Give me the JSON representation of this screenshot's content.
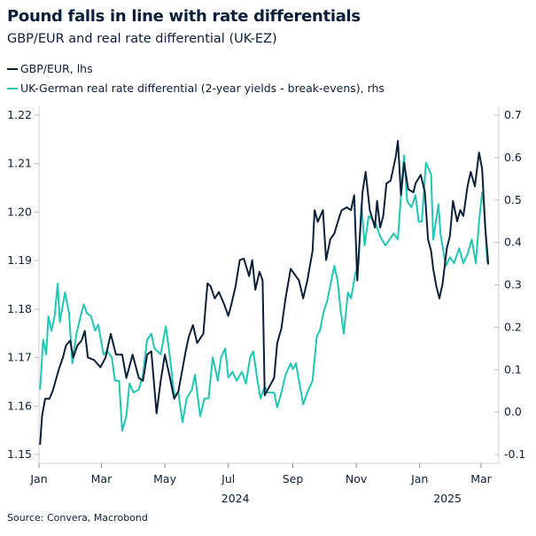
{
  "chart_data": {
    "type": "line",
    "title": "Pound falls in line with rate differentials",
    "subtitle": "GBP/EUR and real rate differential (UK-EZ)",
    "source": "Source: Convera, Macrobond",
    "x_ticks": [
      {
        "date": "2024-01-01",
        "label": "Jan"
      },
      {
        "date": "2024-03-01",
        "label": "Mar"
      },
      {
        "date": "2024-05-01",
        "label": "May"
      },
      {
        "date": "2024-07-01",
        "label": "Jul"
      },
      {
        "date": "2024-09-01",
        "label": "Sep"
      },
      {
        "date": "2024-11-01",
        "label": "Nov"
      },
      {
        "date": "2025-01-01",
        "label": "Jan"
      },
      {
        "date": "2025-03-01",
        "label": "Mar"
      }
    ],
    "year_labels": [
      {
        "date": "2024-07-01",
        "label": "2024"
      },
      {
        "date": "2025-02-01",
        "label": "2025"
      }
    ],
    "xlim": [
      "2024-01-01",
      "2025-03-15"
    ],
    "y_left": {
      "lim": [
        1.15,
        1.22
      ],
      "ticks": [
        "1.15",
        "1.16",
        "1.17",
        "1.18",
        "1.19",
        "1.20",
        "1.21",
        "1.22"
      ]
    },
    "y_right": {
      "lim": [
        -0.1,
        0.7
      ],
      "ticks": [
        "-0.1",
        "0.0",
        "0.1",
        "0.2",
        "0.3",
        "0.4",
        "0.5",
        "0.6",
        "0.7"
      ]
    },
    "grid": false,
    "legend_placement": "top-left",
    "series": [
      {
        "name": "GBP/EUR, lhs",
        "axis": "left",
        "color": "#0b1f3a",
        "points": [
          [
            "2024-01-02",
            1.152
          ],
          [
            "2024-01-04",
            1.158
          ],
          [
            "2024-01-07",
            1.1615
          ],
          [
            "2024-01-11",
            1.1615
          ],
          [
            "2024-01-14",
            1.163
          ],
          [
            "2024-01-20",
            1.1675
          ],
          [
            "2024-01-24",
            1.17
          ],
          [
            "2024-01-27",
            1.1725
          ],
          [
            "2024-01-31",
            1.1735
          ],
          [
            "2024-02-03",
            1.17
          ],
          [
            "2024-02-07",
            1.1725
          ],
          [
            "2024-02-11",
            1.1735
          ],
          [
            "2024-02-14",
            1.1755
          ],
          [
            "2024-02-17",
            1.17
          ],
          [
            "2024-02-23",
            1.1695
          ],
          [
            "2024-02-29",
            1.168
          ],
          [
            "2024-03-05",
            1.17
          ],
          [
            "2024-03-10",
            1.1749
          ],
          [
            "2024-03-15",
            1.1706
          ],
          [
            "2024-03-21",
            1.1706
          ],
          [
            "2024-03-25",
            1.1658
          ],
          [
            "2024-03-31",
            1.1706
          ],
          [
            "2024-04-06",
            1.1658
          ],
          [
            "2024-04-10",
            1.1652
          ],
          [
            "2024-04-14",
            1.1706
          ],
          [
            "2024-04-18",
            1.1713
          ],
          [
            "2024-04-23",
            1.1585
          ],
          [
            "2024-04-27",
            1.1652
          ],
          [
            "2024-05-01",
            1.1706
          ],
          [
            "2024-05-06",
            1.1658
          ],
          [
            "2024-05-10",
            1.1615
          ],
          [
            "2024-05-14",
            1.163
          ],
          [
            "2024-05-21",
            1.1713
          ],
          [
            "2024-05-24",
            1.1743
          ],
          [
            "2024-05-28",
            1.1767
          ],
          [
            "2024-06-01",
            1.173
          ],
          [
            "2024-06-07",
            1.1749
          ],
          [
            "2024-06-11",
            1.1853
          ],
          [
            "2024-06-14",
            1.1847
          ],
          [
            "2024-06-18",
            1.1822
          ],
          [
            "2024-06-22",
            1.1835
          ],
          [
            "2024-06-27",
            1.181
          ],
          [
            "2024-07-01",
            1.1786
          ],
          [
            "2024-07-04",
            1.181
          ],
          [
            "2024-07-08",
            1.1847
          ],
          [
            "2024-07-12",
            1.1901
          ],
          [
            "2024-07-16",
            1.1904
          ],
          [
            "2024-07-21",
            1.1868
          ],
          [
            "2024-07-24",
            1.1901
          ],
          [
            "2024-07-27",
            1.184
          ],
          [
            "2024-07-31",
            1.1877
          ],
          [
            "2024-08-03",
            1.1859
          ],
          [
            "2024-08-05",
            1.1622
          ],
          [
            "2024-08-08",
            1.1634
          ],
          [
            "2024-08-14",
            1.1658
          ],
          [
            "2024-08-17",
            1.173
          ],
          [
            "2024-08-21",
            1.176
          ],
          [
            "2024-08-25",
            1.1822
          ],
          [
            "2024-08-30",
            1.1883
          ],
          [
            "2024-09-03",
            1.1871
          ],
          [
            "2024-09-07",
            1.1859
          ],
          [
            "2024-09-11",
            1.1822
          ],
          [
            "2024-09-15",
            1.1859
          ],
          [
            "2024-09-20",
            1.192
          ],
          [
            "2024-09-22",
            1.2004
          ],
          [
            "2024-09-25",
            1.198
          ],
          [
            "2024-09-30",
            1.2004
          ],
          [
            "2024-10-03",
            1.1901
          ],
          [
            "2024-10-07",
            1.1944
          ],
          [
            "2024-10-11",
            1.1956
          ],
          [
            "2024-10-16",
            1.1992
          ],
          [
            "2024-10-18",
            1.2004
          ],
          [
            "2024-10-23",
            1.201
          ],
          [
            "2024-10-27",
            1.2004
          ],
          [
            "2024-10-30",
            1.2035
          ],
          [
            "2024-11-02",
            1.1859
          ],
          [
            "2024-11-04",
            1.1932
          ],
          [
            "2024-11-07",
            1.2041
          ],
          [
            "2024-11-10",
            1.2083
          ],
          [
            "2024-11-14",
            1.2004
          ],
          [
            "2024-11-19",
            1.1968
          ],
          [
            "2024-11-21",
            1.2023
          ],
          [
            "2024-11-24",
            1.1968
          ],
          [
            "2024-11-27",
            1.1992
          ],
          [
            "2024-11-30",
            1.2059
          ],
          [
            "2024-12-04",
            1.2065
          ],
          [
            "2024-12-09",
            1.2114
          ],
          [
            "2024-12-11",
            1.2147
          ],
          [
            "2024-12-14",
            1.2035
          ],
          [
            "2024-12-17",
            1.2102
          ],
          [
            "2024-12-21",
            1.2047
          ],
          [
            "2024-12-26",
            1.2041
          ],
          [
            "2024-12-28",
            1.2059
          ],
          [
            "2025-01-02",
            1.2077
          ],
          [
            "2025-01-06",
            1.2041
          ],
          [
            "2025-01-09",
            1.1944
          ],
          [
            "2025-01-12",
            1.192
          ],
          [
            "2025-01-14",
            1.1883
          ],
          [
            "2025-01-17",
            1.1847
          ],
          [
            "2025-01-20",
            1.1822
          ],
          [
            "2025-01-23",
            1.1853
          ],
          [
            "2025-01-27",
            1.1925
          ],
          [
            "2025-01-30",
            1.195
          ],
          [
            "2025-02-02",
            1.2023
          ],
          [
            "2025-02-06",
            1.1981
          ],
          [
            "2025-02-09",
            1.2004
          ],
          [
            "2025-02-12",
            1.1992
          ],
          [
            "2025-02-16",
            1.2053
          ],
          [
            "2025-02-19",
            1.2083
          ],
          [
            "2025-02-23",
            1.2053
          ],
          [
            "2025-02-27",
            1.2123
          ],
          [
            "2025-03-02",
            1.2089
          ],
          [
            "2025-03-05",
            1.1968
          ],
          [
            "2025-03-08",
            1.1892
          ]
        ]
      },
      {
        "name": "UK-German real rate differential (2-year yields - break-evens), rhs",
        "axis": "right",
        "color": "#1ec8b4",
        "points": [
          [
            "2024-01-02",
            0.053
          ],
          [
            "2024-01-05",
            0.171
          ],
          [
            "2024-01-08",
            0.136
          ],
          [
            "2024-01-10",
            0.226
          ],
          [
            "2024-01-13",
            0.192
          ],
          [
            "2024-01-16",
            0.226
          ],
          [
            "2024-01-19",
            0.303
          ],
          [
            "2024-01-21",
            0.212
          ],
          [
            "2024-01-26",
            0.282
          ],
          [
            "2024-01-30",
            0.233
          ],
          [
            "2024-02-02",
            0.115
          ],
          [
            "2024-02-06",
            0.185
          ],
          [
            "2024-02-10",
            0.226
          ],
          [
            "2024-02-13",
            0.254
          ],
          [
            "2024-02-16",
            0.233
          ],
          [
            "2024-02-20",
            0.226
          ],
          [
            "2024-02-24",
            0.192
          ],
          [
            "2024-02-27",
            0.206
          ],
          [
            "2024-03-03",
            0.136
          ],
          [
            "2024-03-07",
            0.143
          ],
          [
            "2024-03-11",
            0.129
          ],
          [
            "2024-03-14",
            0.074
          ],
          [
            "2024-03-18",
            0.074
          ],
          [
            "2024-03-21",
            -0.044
          ],
          [
            "2024-03-25",
            -0.01
          ],
          [
            "2024-03-28",
            0.067
          ],
          [
            "2024-04-01",
            0.046
          ],
          [
            "2024-04-06",
            0.053
          ],
          [
            "2024-04-10",
            0.088
          ],
          [
            "2024-04-14",
            0.171
          ],
          [
            "2024-04-18",
            0.185
          ],
          [
            "2024-04-21",
            0.15
          ],
          [
            "2024-04-27",
            0.136
          ],
          [
            "2024-05-02",
            0.202
          ],
          [
            "2024-05-06",
            0.129
          ],
          [
            "2024-05-10",
            0.039
          ],
          [
            "2024-05-14",
            0.046
          ],
          [
            "2024-05-18",
            -0.024
          ],
          [
            "2024-05-22",
            0.032
          ],
          [
            "2024-05-27",
            0.053
          ],
          [
            "2024-05-30",
            0.088
          ],
          [
            "2024-06-04",
            -0.01
          ],
          [
            "2024-06-08",
            0.032
          ],
          [
            "2024-06-12",
            0.032
          ],
          [
            "2024-06-16",
            0.129
          ],
          [
            "2024-06-21",
            0.074
          ],
          [
            "2024-06-24",
            0.129
          ],
          [
            "2024-06-28",
            0.15
          ],
          [
            "2024-07-01",
            0.081
          ],
          [
            "2024-07-05",
            0.095
          ],
          [
            "2024-07-09",
            0.074
          ],
          [
            "2024-07-14",
            0.095
          ],
          [
            "2024-07-18",
            0.067
          ],
          [
            "2024-07-22",
            0.129
          ],
          [
            "2024-07-25",
            0.143
          ],
          [
            "2024-07-29",
            0.074
          ],
          [
            "2024-08-01",
            0.032
          ],
          [
            "2024-08-05",
            0.06
          ],
          [
            "2024-08-08",
            0.046
          ],
          [
            "2024-08-14",
            0.046
          ],
          [
            "2024-08-17",
            0.011
          ],
          [
            "2024-08-21",
            0.046
          ],
          [
            "2024-08-25",
            0.088
          ],
          [
            "2024-08-30",
            0.115
          ],
          [
            "2024-09-01",
            0.101
          ],
          [
            "2024-09-04",
            0.115
          ],
          [
            "2024-09-07",
            0.074
          ],
          [
            "2024-09-11",
            0.018
          ],
          [
            "2024-09-15",
            0.046
          ],
          [
            "2024-09-20",
            0.074
          ],
          [
            "2024-09-24",
            0.178
          ],
          [
            "2024-09-27",
            0.192
          ],
          [
            "2024-10-01",
            0.24
          ],
          [
            "2024-10-04",
            0.261
          ],
          [
            "2024-10-08",
            0.31
          ],
          [
            "2024-10-11",
            0.345
          ],
          [
            "2024-10-14",
            0.31
          ],
          [
            "2024-10-17",
            0.24
          ],
          [
            "2024-10-20",
            0.185
          ],
          [
            "2024-10-24",
            0.282
          ],
          [
            "2024-10-27",
            0.268
          ],
          [
            "2024-10-31",
            0.324
          ],
          [
            "2024-11-03",
            0.351
          ],
          [
            "2024-11-06",
            0.49
          ],
          [
            "2024-11-09",
            0.393
          ],
          [
            "2024-11-13",
            0.462
          ],
          [
            "2024-11-16",
            0.456
          ],
          [
            "2024-11-20",
            0.442
          ],
          [
            "2024-11-24",
            0.414
          ],
          [
            "2024-11-29",
            0.393
          ],
          [
            "2024-12-03",
            0.407
          ],
          [
            "2024-12-07",
            0.421
          ],
          [
            "2024-12-11",
            0.407
          ],
          [
            "2024-12-14",
            0.511
          ],
          [
            "2024-12-17",
            0.605
          ],
          [
            "2024-12-20",
            0.497
          ],
          [
            "2024-12-24",
            0.483
          ],
          [
            "2024-12-28",
            0.511
          ],
          [
            "2024-12-31",
            0.449
          ],
          [
            "2025-01-03",
            0.449
          ],
          [
            "2025-01-07",
            0.588
          ],
          [
            "2025-01-12",
            0.56
          ],
          [
            "2025-01-14",
            0.407
          ],
          [
            "2025-01-19",
            0.49
          ],
          [
            "2025-01-21",
            0.421
          ],
          [
            "2025-01-26",
            0.344
          ],
          [
            "2025-01-30",
            0.365
          ],
          [
            "2025-02-03",
            0.351
          ],
          [
            "2025-02-08",
            0.386
          ],
          [
            "2025-02-12",
            0.351
          ],
          [
            "2025-02-16",
            0.372
          ],
          [
            "2025-02-20",
            0.407
          ],
          [
            "2025-02-24",
            0.351
          ],
          [
            "2025-02-27",
            0.449
          ],
          [
            "2025-03-02",
            0.518
          ],
          [
            "2025-03-04",
            0.483
          ],
          [
            "2025-03-07",
            0.351
          ]
        ]
      }
    ]
  }
}
